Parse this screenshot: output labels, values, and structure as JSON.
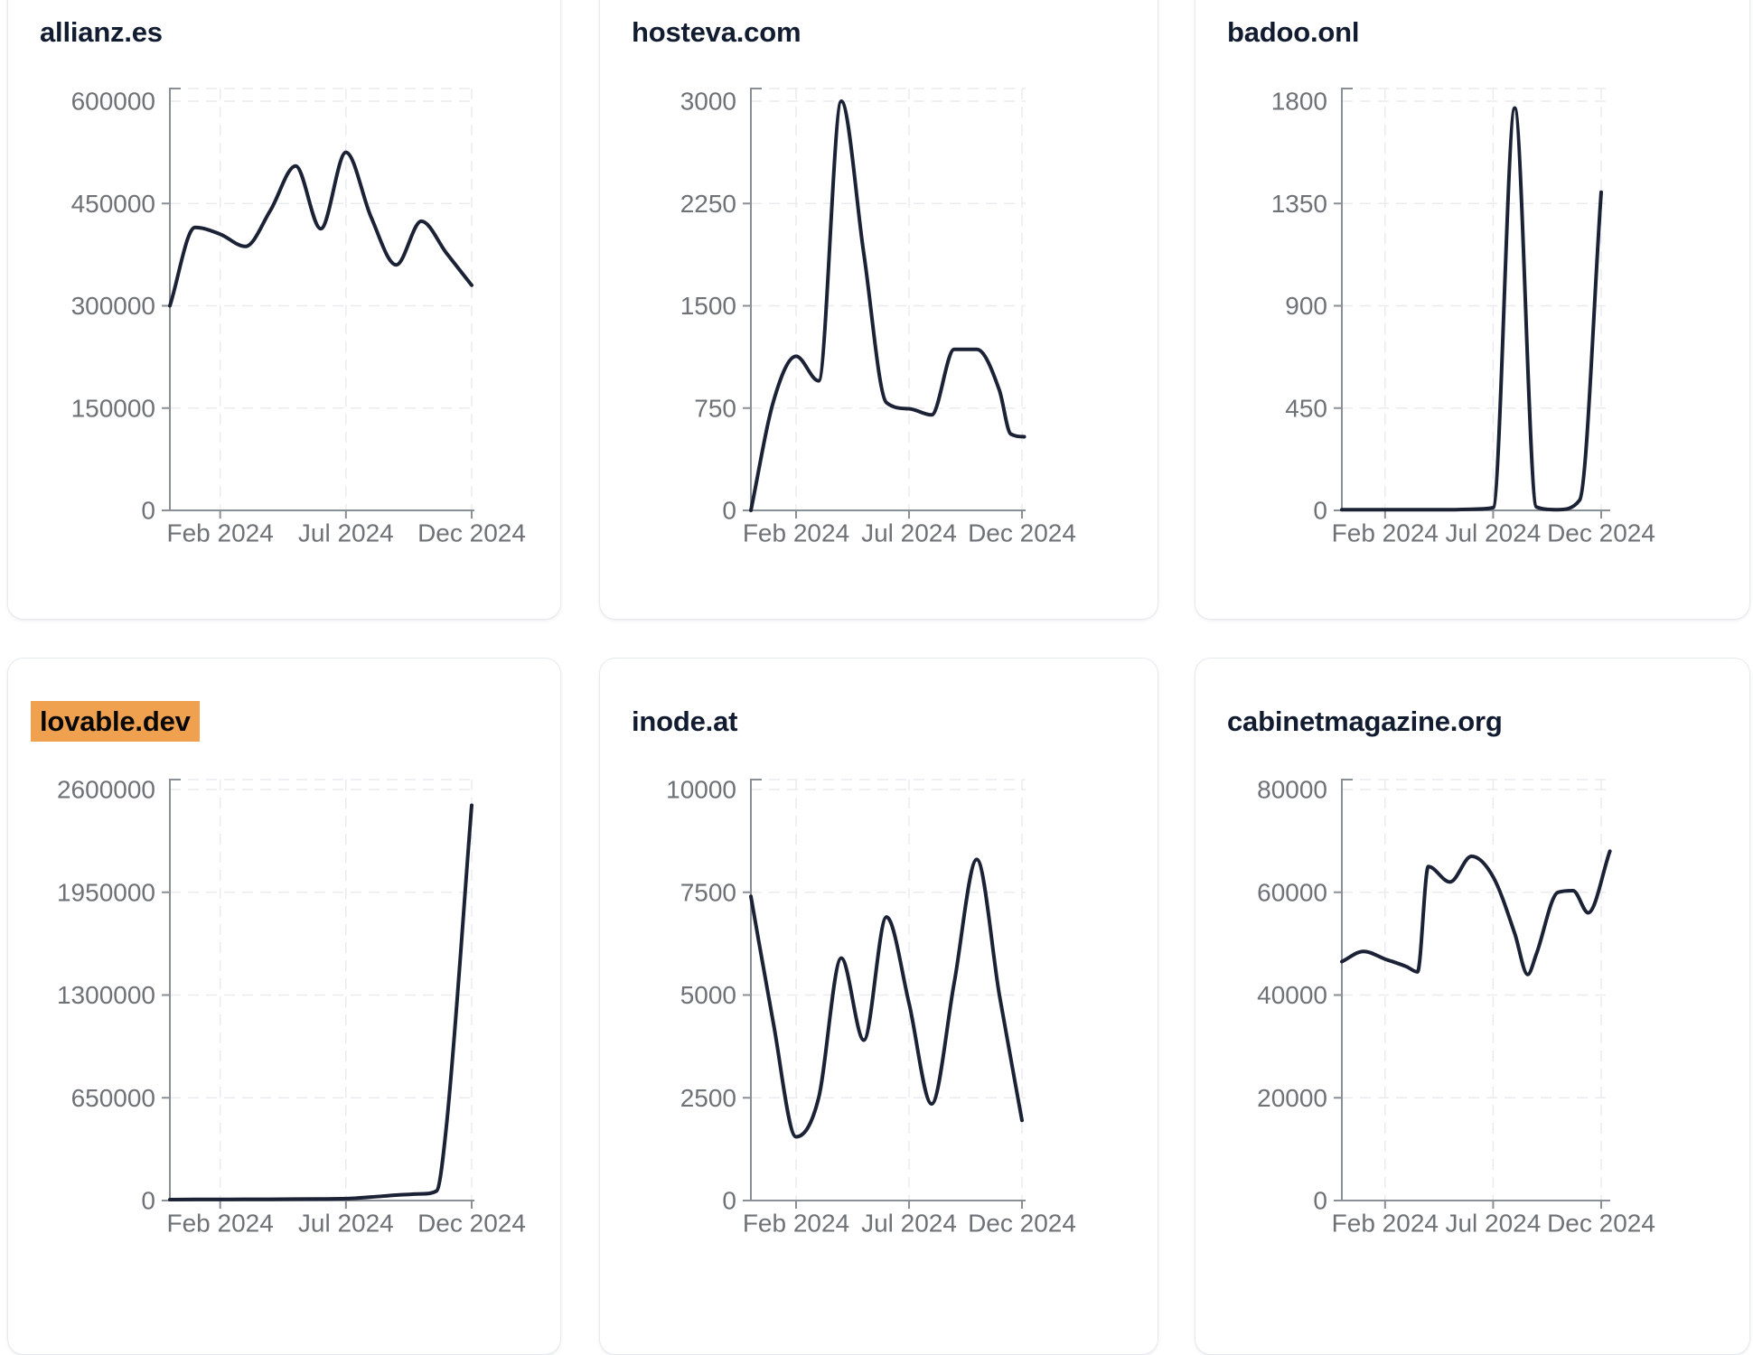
{
  "style": {
    "page_background": "#ffffff",
    "card_background": "#ffffff",
    "card_border": "#e6eaf0",
    "title_color": "#121c31",
    "highlight_background": "#f0a14f",
    "highlight_text": "#070707",
    "line_color": "#1b2235",
    "axis_color": "#8a8f96",
    "grid_color": "#e9ebef",
    "tick_label_color": "#6e7277"
  },
  "chart_data": [
    {
      "type": "line",
      "title": "allianz.es",
      "title_highlighted": false,
      "grid": "dashed",
      "legend": "none",
      "y_min": 0,
      "y_max": 600000,
      "y_ticks": [
        {
          "label": "600000",
          "value": 600000
        },
        {
          "label": "450000",
          "value": 450000
        },
        {
          "label": "300000",
          "value": 300000
        },
        {
          "label": "150000",
          "value": 150000
        },
        {
          "label": "0",
          "value": 0
        }
      ],
      "x_ticks": [
        {
          "label": "Feb 2024",
          "month": 2
        },
        {
          "label": "Jul 2024",
          "month": 7
        },
        {
          "label": "Dec 2024",
          "month": 12
        }
      ],
      "series": [
        {
          "months": [
            0,
            1,
            2,
            3,
            4,
            5,
            6,
            7,
            8,
            9,
            10,
            11,
            12
          ],
          "values": [
            300000,
            415000,
            405000,
            387000,
            440000,
            505000,
            413000,
            525000,
            430000,
            360000,
            424000,
            377000,
            330000
          ]
        }
      ]
    },
    {
      "type": "line",
      "title": "hosteva.com",
      "title_highlighted": false,
      "grid": "dashed",
      "legend": "none",
      "y_min": 0,
      "y_max": 3000,
      "y_ticks": [
        {
          "label": "3000",
          "value": 3000
        },
        {
          "label": "2250",
          "value": 2250
        },
        {
          "label": "1500",
          "value": 1500
        },
        {
          "label": "750",
          "value": 750
        },
        {
          "label": "0",
          "value": 0
        }
      ],
      "x_ticks": [
        {
          "label": "Feb 2024",
          "month": 2
        },
        {
          "label": "Jul 2024",
          "month": 7
        },
        {
          "label": "Dec 2024",
          "month": 12
        }
      ],
      "series": [
        {
          "months": [
            0,
            1,
            2,
            3,
            4,
            5,
            6,
            7,
            8,
            9,
            10,
            11,
            11.5,
            12.1
          ],
          "values": [
            0,
            800,
            1130,
            950,
            3000,
            1880,
            790,
            745,
            700,
            1180,
            1180,
            880,
            560,
            540
          ]
        }
      ]
    },
    {
      "type": "line",
      "title": "badoo.onl",
      "title_highlighted": false,
      "grid": "dashed",
      "legend": "none",
      "y_min": 0,
      "y_max": 1800,
      "y_ticks": [
        {
          "label": "1800",
          "value": 1800
        },
        {
          "label": "1350",
          "value": 1350
        },
        {
          "label": "900",
          "value": 900
        },
        {
          "label": "450",
          "value": 450
        },
        {
          "label": "0",
          "value": 0
        }
      ],
      "x_ticks": [
        {
          "label": "Feb 2024",
          "month": 2
        },
        {
          "label": "Jul 2024",
          "month": 7
        },
        {
          "label": "Dec 2024",
          "month": 12
        }
      ],
      "series": [
        {
          "months": [
            0,
            1,
            2,
            3,
            4,
            5,
            6,
            7,
            8,
            9,
            10,
            11,
            12
          ],
          "values": [
            3,
            3,
            3,
            3,
            3,
            3,
            5,
            12,
            1770,
            15,
            3,
            45,
            1400
          ]
        }
      ]
    },
    {
      "type": "line",
      "title": "lovable.dev",
      "title_highlighted": true,
      "grid": "dashed",
      "legend": "none",
      "y_min": 0,
      "y_max": 2600000,
      "y_ticks": [
        {
          "label": "2600000",
          "value": 2600000
        },
        {
          "label": "1950000",
          "value": 1950000
        },
        {
          "label": "1300000",
          "value": 1300000
        },
        {
          "label": "650000",
          "value": 650000
        },
        {
          "label": "0",
          "value": 0
        }
      ],
      "x_ticks": [
        {
          "label": "Feb 2024",
          "month": 2
        },
        {
          "label": "Jul 2024",
          "month": 7
        },
        {
          "label": "Dec 2024",
          "month": 12
        }
      ],
      "series": [
        {
          "months": [
            0,
            1,
            2,
            3,
            4,
            5,
            6,
            7,
            8,
            9,
            10,
            10.6,
            11,
            12
          ],
          "values": [
            6000,
            7000,
            7000,
            8000,
            8000,
            9000,
            10000,
            12000,
            22000,
            34000,
            42000,
            60000,
            480000,
            2500000
          ]
        }
      ]
    },
    {
      "type": "line",
      "title": "inode.at",
      "title_highlighted": false,
      "grid": "dashed",
      "legend": "none",
      "y_min": 0,
      "y_max": 10000,
      "y_ticks": [
        {
          "label": "10000",
          "value": 10000
        },
        {
          "label": "7500",
          "value": 7500
        },
        {
          "label": "5000",
          "value": 5000
        },
        {
          "label": "2500",
          "value": 2500
        },
        {
          "label": "0",
          "value": 0
        }
      ],
      "x_ticks": [
        {
          "label": "Feb 2024",
          "month": 2
        },
        {
          "label": "Jul 2024",
          "month": 7
        },
        {
          "label": "Dec 2024",
          "month": 12
        }
      ],
      "series": [
        {
          "months": [
            0,
            1,
            2,
            3,
            4,
            5,
            6,
            7,
            8,
            9,
            10,
            11,
            12
          ],
          "values": [
            7400,
            4300,
            1550,
            2500,
            5900,
            3900,
            6900,
            4800,
            2350,
            5300,
            8300,
            5000,
            1950
          ]
        }
      ]
    },
    {
      "type": "line",
      "title": "cabinetmagazine.org",
      "title_highlighted": false,
      "grid": "dashed",
      "legend": "none",
      "y_min": 0,
      "y_max": 80000,
      "y_ticks": [
        {
          "label": "80000",
          "value": 80000
        },
        {
          "label": "60000",
          "value": 60000
        },
        {
          "label": "40000",
          "value": 40000
        },
        {
          "label": "20000",
          "value": 20000
        },
        {
          "label": "0",
          "value": 0
        }
      ],
      "x_ticks": [
        {
          "label": "Feb 2024",
          "month": 2
        },
        {
          "label": "Jul 2024",
          "month": 7
        },
        {
          "label": "Dec 2024",
          "month": 12
        }
      ],
      "series": [
        {
          "months": [
            0,
            1,
            2,
            3,
            3.5,
            4,
            5,
            6,
            7,
            8,
            8.6,
            9,
            10,
            10.7,
            11.4,
            12.4
          ],
          "values": [
            46500,
            48500,
            47000,
            45500,
            44500,
            65000,
            62000,
            67000,
            63000,
            52000,
            44000,
            48000,
            60000,
            60300,
            56000,
            68000
          ]
        }
      ]
    }
  ]
}
